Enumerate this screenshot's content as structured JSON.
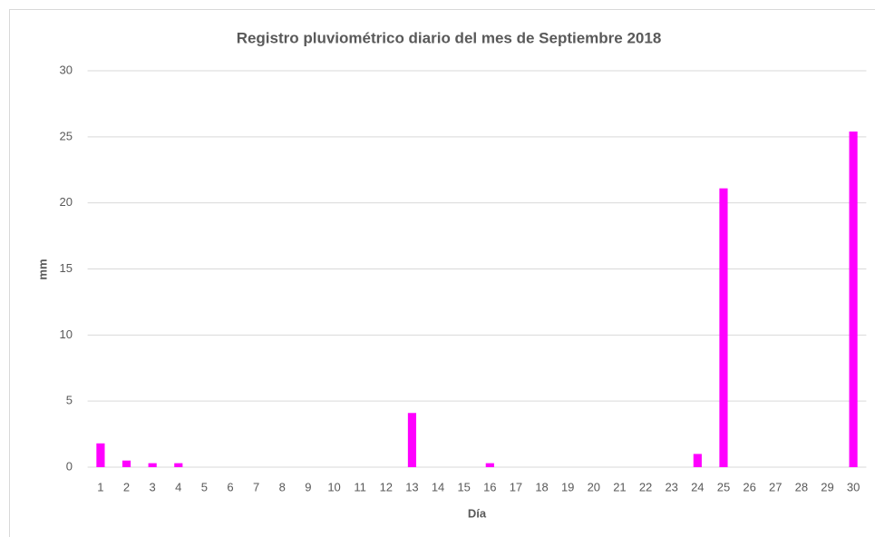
{
  "chart_data": {
    "type": "bar",
    "title": "Registro pluviométrico diario del mes de Septiembre 2018",
    "x_label": "Día",
    "y_label": "mm",
    "categories": [
      "1",
      "2",
      "3",
      "4",
      "5",
      "6",
      "7",
      "8",
      "9",
      "10",
      "11",
      "12",
      "13",
      "14",
      "15",
      "16",
      "17",
      "18",
      "19",
      "20",
      "21",
      "22",
      "23",
      "24",
      "25",
      "26",
      "27",
      "28",
      "29",
      "30"
    ],
    "values": [
      1.8,
      0.5,
      0.3,
      0.3,
      0,
      0,
      0,
      0,
      0,
      0,
      0,
      0,
      4.1,
      0,
      0,
      0.3,
      0,
      0,
      0,
      0,
      0,
      0,
      0,
      1.0,
      21.1,
      0,
      0,
      0,
      0,
      25.4
    ],
    "color": "#ff00ff",
    "ylim": [
      0,
      30
    ],
    "yticks": [
      0,
      5,
      10,
      15,
      20,
      25,
      30
    ],
    "grid": true
  }
}
